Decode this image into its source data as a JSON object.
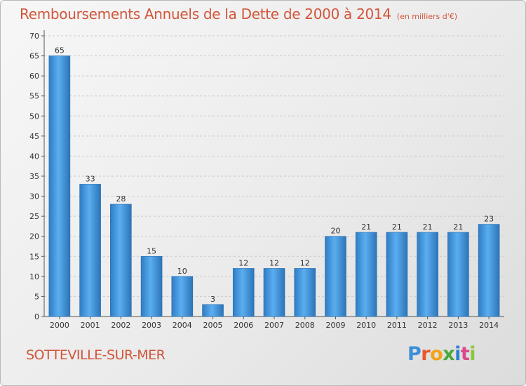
{
  "header": {
    "title": "Remboursements Annuels de la Dette de 2000 à 2014",
    "unit": "(en milliers d'€)"
  },
  "footer": {
    "commune": "SOTTEVILLE-SUR-MER",
    "logo": "Proxiti"
  },
  "chart_data": {
    "type": "bar",
    "title": "Remboursements Annuels de la Dette de 2000 à 2014",
    "subtitle": "(en milliers d'€)",
    "categories": [
      "2000",
      "2001",
      "2002",
      "2003",
      "2004",
      "2005",
      "2006",
      "2007",
      "2008",
      "2009",
      "2010",
      "2011",
      "2012",
      "2013",
      "2014"
    ],
    "values": [
      65,
      33,
      28,
      15,
      10,
      3,
      12,
      12,
      12,
      20,
      21,
      21,
      21,
      21,
      23
    ],
    "ylim": [
      0,
      70
    ],
    "yticks": [
      0,
      5,
      10,
      15,
      20,
      25,
      30,
      35,
      40,
      45,
      50,
      55,
      60,
      65,
      70
    ],
    "grid": true,
    "bar_color": "#3a8fd6",
    "title_color": "#d2553a"
  }
}
